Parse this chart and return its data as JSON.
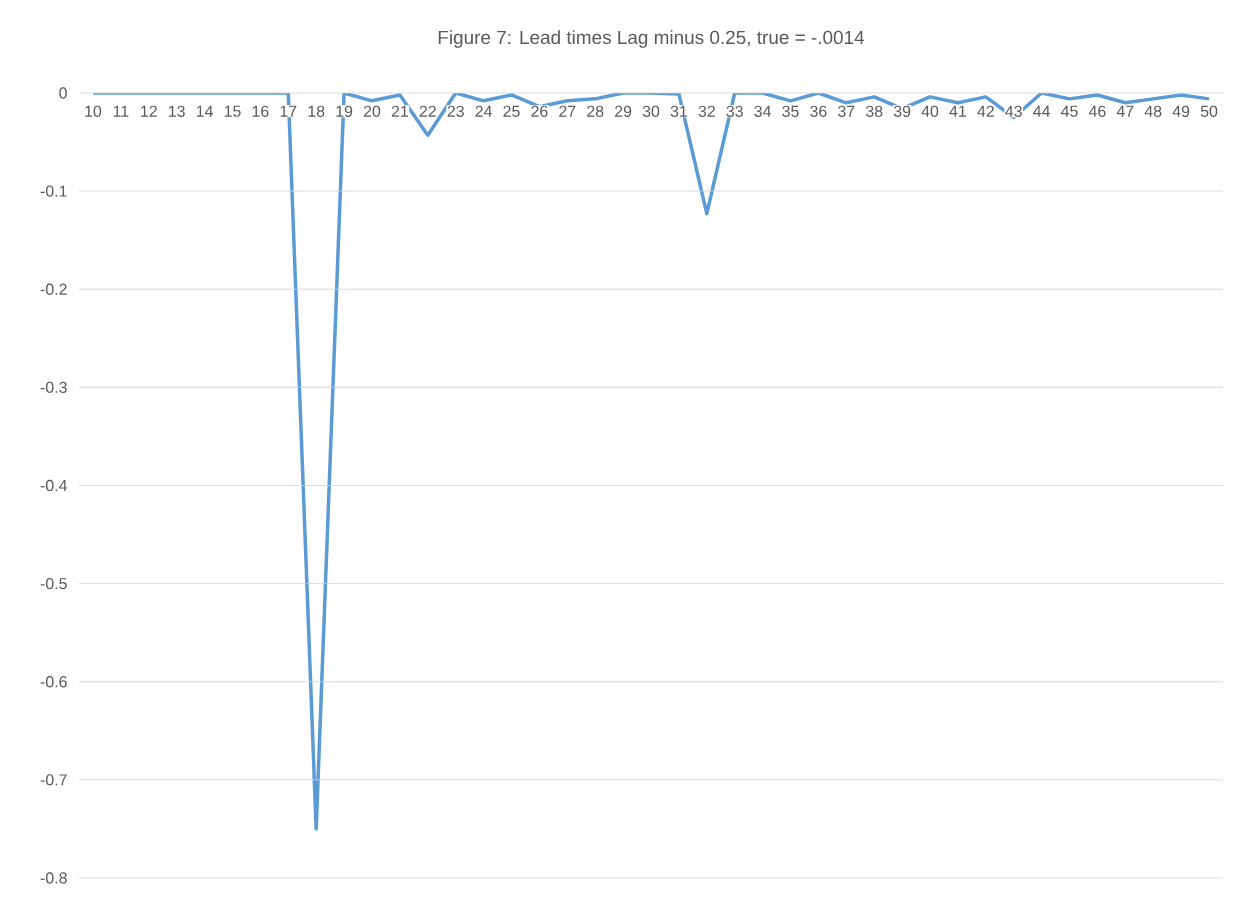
{
  "chart_data": {
    "type": "line",
    "title": "Figure 7:  Lead times Lag minus 0.25, true = -.0014",
    "categories": [
      "10",
      "11",
      "12",
      "13",
      "14",
      "15",
      "16",
      "17",
      "18",
      "19",
      "20",
      "21",
      "22",
      "23",
      "24",
      "25",
      "26",
      "27",
      "28",
      "29",
      "30",
      "31",
      "32",
      "33",
      "34",
      "35",
      "36",
      "37",
      "38",
      "39",
      "40",
      "41",
      "42",
      "43",
      "44",
      "45",
      "46",
      "47",
      "48",
      "49",
      "50"
    ],
    "series": [
      {
        "color": "#5b9bd5",
        "values": [
          0,
          0,
          0,
          0,
          0,
          0,
          0,
          0,
          -0.75,
          0,
          -0.008,
          -0.002,
          -0.043,
          0,
          -0.008,
          -0.002,
          -0.014,
          -0.008,
          -0.006,
          0,
          0,
          -0.001,
          -0.123,
          0,
          0,
          -0.008,
          0,
          -0.01,
          -0.004,
          -0.016,
          -0.004,
          -0.01,
          -0.004,
          -0.025,
          0,
          -0.006,
          -0.002,
          -0.01,
          -0.006,
          -0.002,
          -0.006
        ]
      }
    ],
    "ylim": [
      -0.8,
      0
    ],
    "yticks": [
      0,
      -0.1,
      -0.2,
      -0.3,
      -0.4,
      -0.5,
      -0.6,
      -0.7,
      -0.8
    ],
    "grid": "y",
    "marker": "none",
    "line_style": "solid"
  }
}
